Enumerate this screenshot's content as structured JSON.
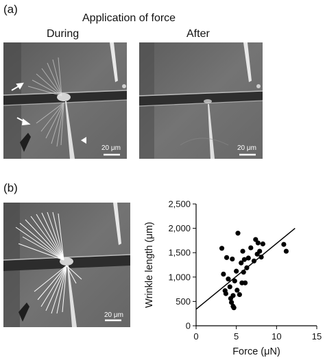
{
  "figure": {
    "panel_a_label": "(a)",
    "panel_b_label": "(b)",
    "section_title": "Application of force",
    "during_label": "During",
    "after_label": "After",
    "scalebar_label": "20 μm"
  },
  "colors": {
    "micrograph_bg": "#6b6b6b",
    "wrinkle_line": "#ffffff",
    "point": "#000000"
  },
  "chart_data": {
    "type": "scatter",
    "title": "",
    "xlabel": "Force (μN)",
    "ylabel": "Wrinkle length (μm)",
    "xlim": [
      0,
      15
    ],
    "ylim": [
      0,
      2500
    ],
    "xticks": [
      0,
      5,
      10,
      15
    ],
    "xtick_labels": [
      "0",
      "5",
      "10",
      "15"
    ],
    "yticks": [
      0,
      500,
      1000,
      1500,
      2000,
      2500
    ],
    "ytick_labels": [
      "0",
      "500",
      "1,000",
      "1,500",
      "2,000",
      "2,500"
    ],
    "grid": false,
    "legend": "none",
    "points": [
      [
        3.2,
        1590
      ],
      [
        3.4,
        1060
      ],
      [
        3.6,
        720
      ],
      [
        3.7,
        660
      ],
      [
        3.8,
        1400
      ],
      [
        4.0,
        960
      ],
      [
        4.2,
        800
      ],
      [
        4.3,
        560
      ],
      [
        4.4,
        480
      ],
      [
        4.5,
        1370
      ],
      [
        4.6,
        620
      ],
      [
        4.6,
        400
      ],
      [
        4.7,
        370
      ],
      [
        4.8,
        920
      ],
      [
        5.0,
        1120
      ],
      [
        5.1,
        730
      ],
      [
        5.2,
        1900
      ],
      [
        5.4,
        640
      ],
      [
        5.6,
        1290
      ],
      [
        5.7,
        880
      ],
      [
        5.8,
        1530
      ],
      [
        5.9,
        1100
      ],
      [
        6.0,
        1360
      ],
      [
        6.1,
        880
      ],
      [
        6.3,
        1190
      ],
      [
        6.5,
        1390
      ],
      [
        6.8,
        1600
      ],
      [
        7.2,
        1330
      ],
      [
        7.4,
        1770
      ],
      [
        7.6,
        1470
      ],
      [
        7.7,
        1700
      ],
      [
        7.9,
        1530
      ],
      [
        8.1,
        1410
      ],
      [
        8.3,
        1680
      ],
      [
        10.9,
        1670
      ],
      [
        11.2,
        1530
      ]
    ],
    "trendline": {
      "x": [
        0,
        12.3
      ],
      "y": [
        340,
        2000
      ]
    }
  }
}
